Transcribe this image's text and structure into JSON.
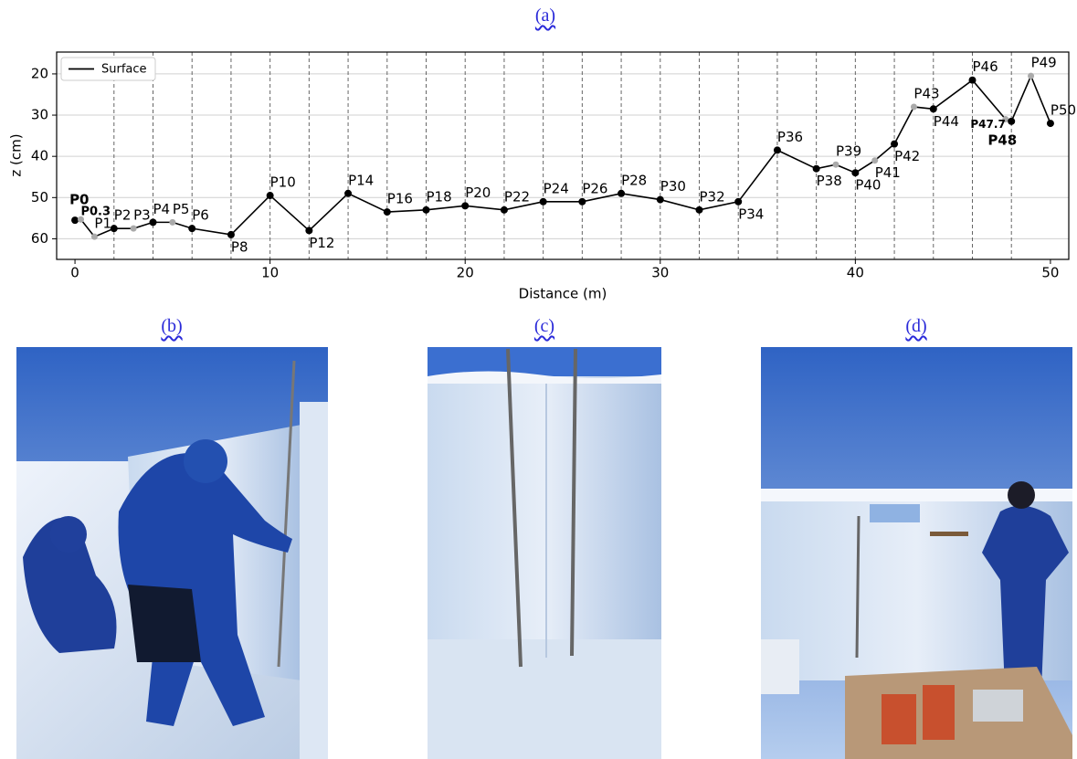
{
  "captions": [
    "(a)",
    "(b)",
    "(c)",
    "(d)"
  ],
  "chart_data": {
    "type": "line",
    "x_label": "Distance (m)",
    "y_label": "z (cm)",
    "x": [
      0,
      0.3,
      1,
      2,
      3,
      4,
      5,
      6,
      8,
      10,
      12,
      14,
      16,
      18,
      20,
      22,
      24,
      26,
      28,
      30,
      32,
      34,
      36,
      38,
      39,
      40,
      41,
      42,
      43,
      44,
      46,
      47.7,
      48,
      49,
      50
    ],
    "series": [
      {
        "name": "Surface",
        "color": "#000000",
        "values": [
          55.5,
          55.3,
          59.5,
          57.5,
          57.5,
          56,
          56,
          57.5,
          59,
          49.5,
          58,
          49,
          53.5,
          53,
          52,
          53,
          51,
          51,
          49,
          50.5,
          53,
          51,
          38.5,
          43,
          42,
          44,
          41,
          37,
          28,
          28.5,
          21.5,
          31,
          31.5,
          20.5,
          32
        ],
        "point_colors": [
          "#000000",
          "#aaaaaa",
          "#aaaaaa",
          "#000000",
          "#aaaaaa",
          "#000000",
          "#aaaaaa",
          "#000000",
          "#000000",
          "#000000",
          "#000000",
          "#000000",
          "#000000",
          "#000000",
          "#000000",
          "#000000",
          "#000000",
          "#000000",
          "#000000",
          "#000000",
          "#000000",
          "#000000",
          "#000000",
          "#000000",
          "#aaaaaa",
          "#000000",
          "#aaaaaa",
          "#000000",
          "#aaaaaa",
          "#000000",
          "#000000",
          "#aaaaaa",
          "#000000",
          "#aaaaaa",
          "#000000"
        ],
        "point_labels": [
          "P0",
          "P0.3",
          "P1",
          "P2",
          "P3",
          "P4",
          "P5",
          "P6",
          "P8",
          "P10",
          "P12",
          "P14",
          "P16",
          "P18",
          "P20",
          "P22",
          "P24",
          "P26",
          "P28",
          "P30",
          "P32",
          "P34",
          "P36",
          "P38",
          "P39",
          "P40",
          "P41",
          "P42",
          "P43",
          "P44",
          "P46",
          "P47.7",
          "P48",
          "P49",
          "P50"
        ],
        "label_bold": [
          true,
          true,
          false,
          false,
          false,
          false,
          false,
          false,
          false,
          false,
          false,
          false,
          false,
          false,
          false,
          false,
          false,
          false,
          false,
          false,
          false,
          false,
          false,
          false,
          false,
          false,
          false,
          false,
          false,
          false,
          false,
          true,
          true,
          false,
          false
        ]
      }
    ],
    "xlim": [
      -0.94,
      50.94
    ],
    "ylim": [
      14.7,
      65
    ],
    "invert_y": true,
    "xticks": [
      0,
      10,
      20,
      30,
      40,
      50
    ],
    "yticks": [
      20,
      30,
      40,
      50,
      60
    ],
    "grid": true,
    "vlines": [
      2,
      4,
      6,
      8,
      10,
      12,
      14,
      16,
      18,
      20,
      22,
      24,
      26,
      28,
      30,
      32,
      34,
      36,
      38,
      40,
      42,
      44,
      46,
      48
    ],
    "legend": "upper left"
  }
}
